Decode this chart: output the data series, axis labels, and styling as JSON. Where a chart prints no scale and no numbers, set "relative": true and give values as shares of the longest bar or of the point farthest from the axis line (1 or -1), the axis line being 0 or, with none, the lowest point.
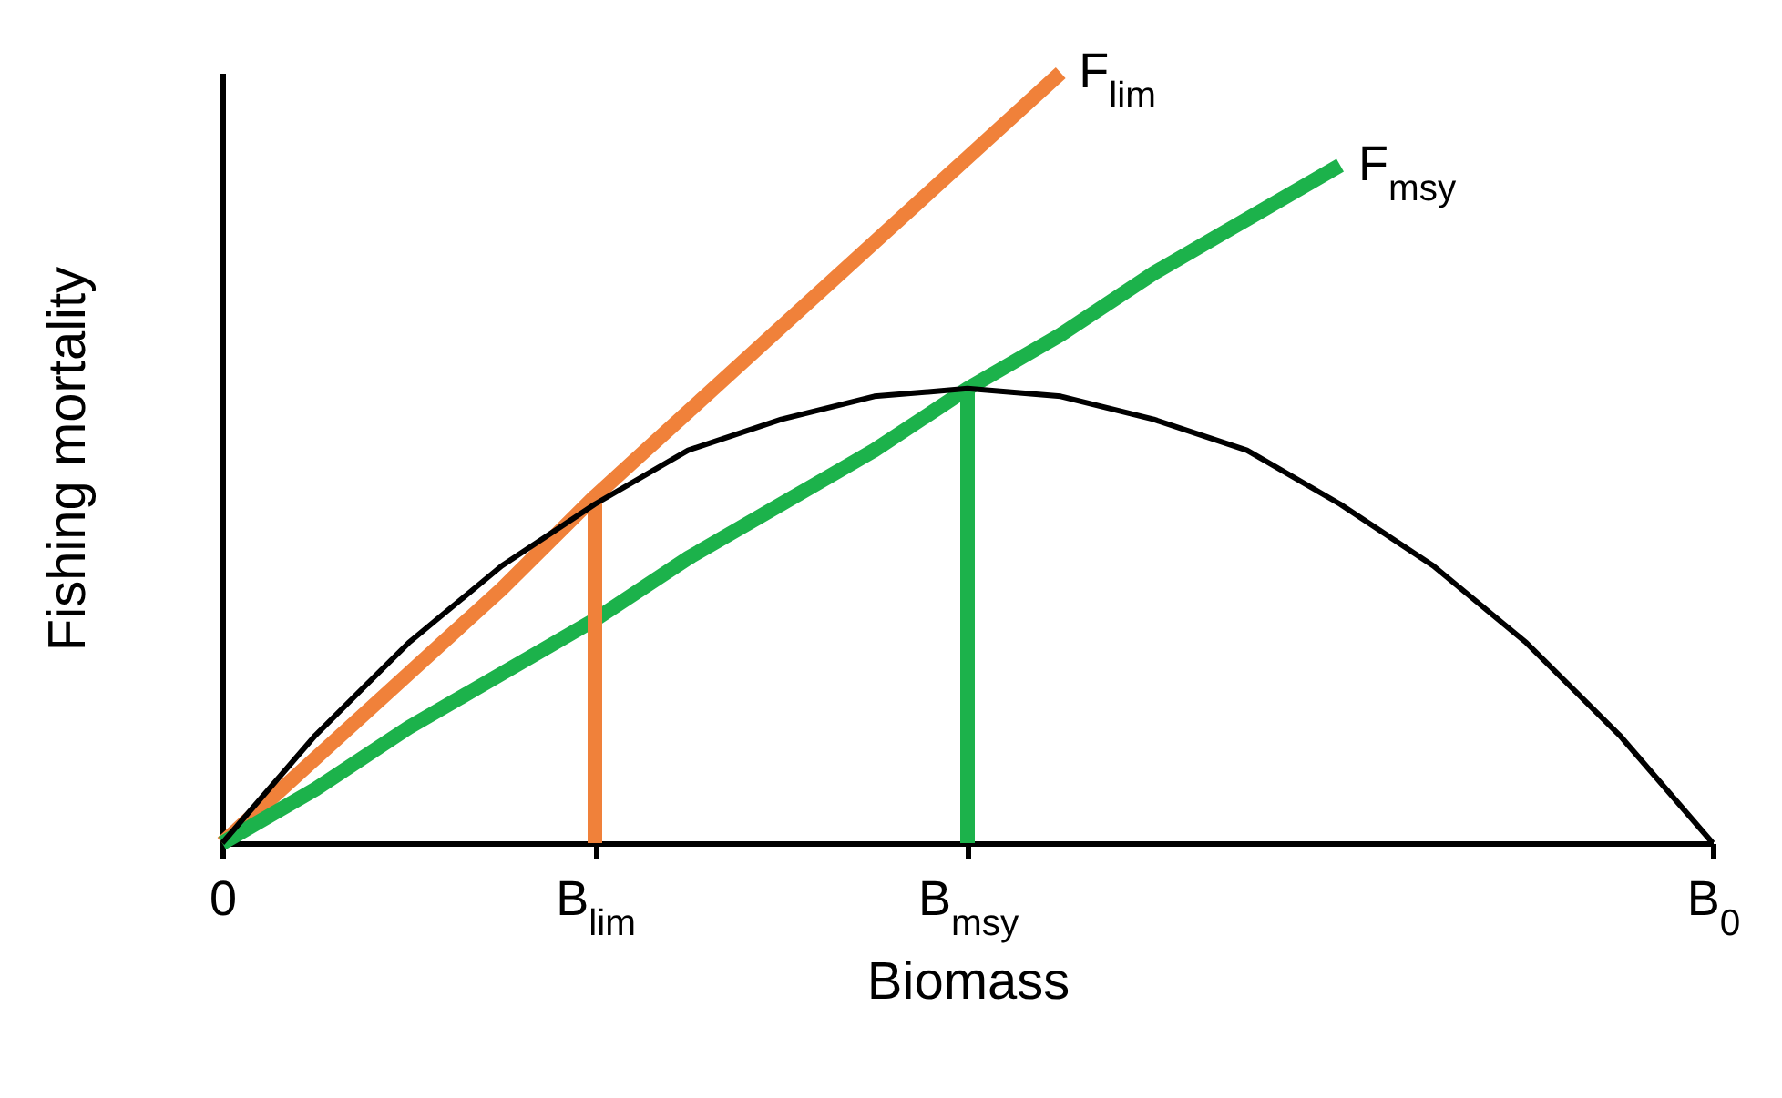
{
  "chart_data": {
    "type": "line",
    "xlabel": "Biomass",
    "ylabel": "Fishing mortality",
    "relative": true,
    "line_style": "solid",
    "categories": [
      "0",
      null,
      null,
      null,
      "B$_{lim}$",
      null,
      null,
      null,
      "B$_{msy}$",
      null,
      null,
      null,
      null,
      null,
      null,
      null,
      "B$_{0}$"
    ],
    "series": [
      {
        "color": "#000000",
        "values": [
          0,
          0.14,
          0.26,
          0.36,
          0.44,
          0.51,
          0.55,
          0.58,
          0.59,
          0.58,
          0.55,
          0.51,
          0.44,
          0.36,
          0.26,
          0.14,
          0
        ]
      },
      {
        "name": "F$_{lim}$",
        "color": "#f0813a",
        "values": [
          0,
          0.11,
          0.22,
          0.33,
          0.45,
          0.56,
          0.67,
          0.78,
          0.89,
          1.0,
          null,
          null,
          null,
          null,
          null,
          null,
          null
        ]
      },
      {
        "name": "F$_{msy}$",
        "color": "#1cb24b",
        "values": [
          0,
          0.07,
          0.15,
          0.22,
          0.29,
          0.37,
          0.44,
          0.51,
          0.59,
          0.66,
          0.74,
          0.81,
          0.88,
          null,
          null,
          null,
          null
        ]
      },
      {
        "type": "bar",
        "color": "#f0813a",
        "values": [
          null,
          null,
          null,
          null,
          0.45,
          null,
          null,
          null,
          null,
          null,
          null,
          null,
          null,
          null,
          null,
          null,
          null
        ]
      },
      {
        "type": "bar",
        "color": "#1cb24b",
        "values": [
          null,
          null,
          null,
          null,
          null,
          null,
          null,
          null,
          0.59,
          null,
          null,
          null,
          null,
          null,
          null,
          null,
          null
        ]
      }
    ]
  }
}
